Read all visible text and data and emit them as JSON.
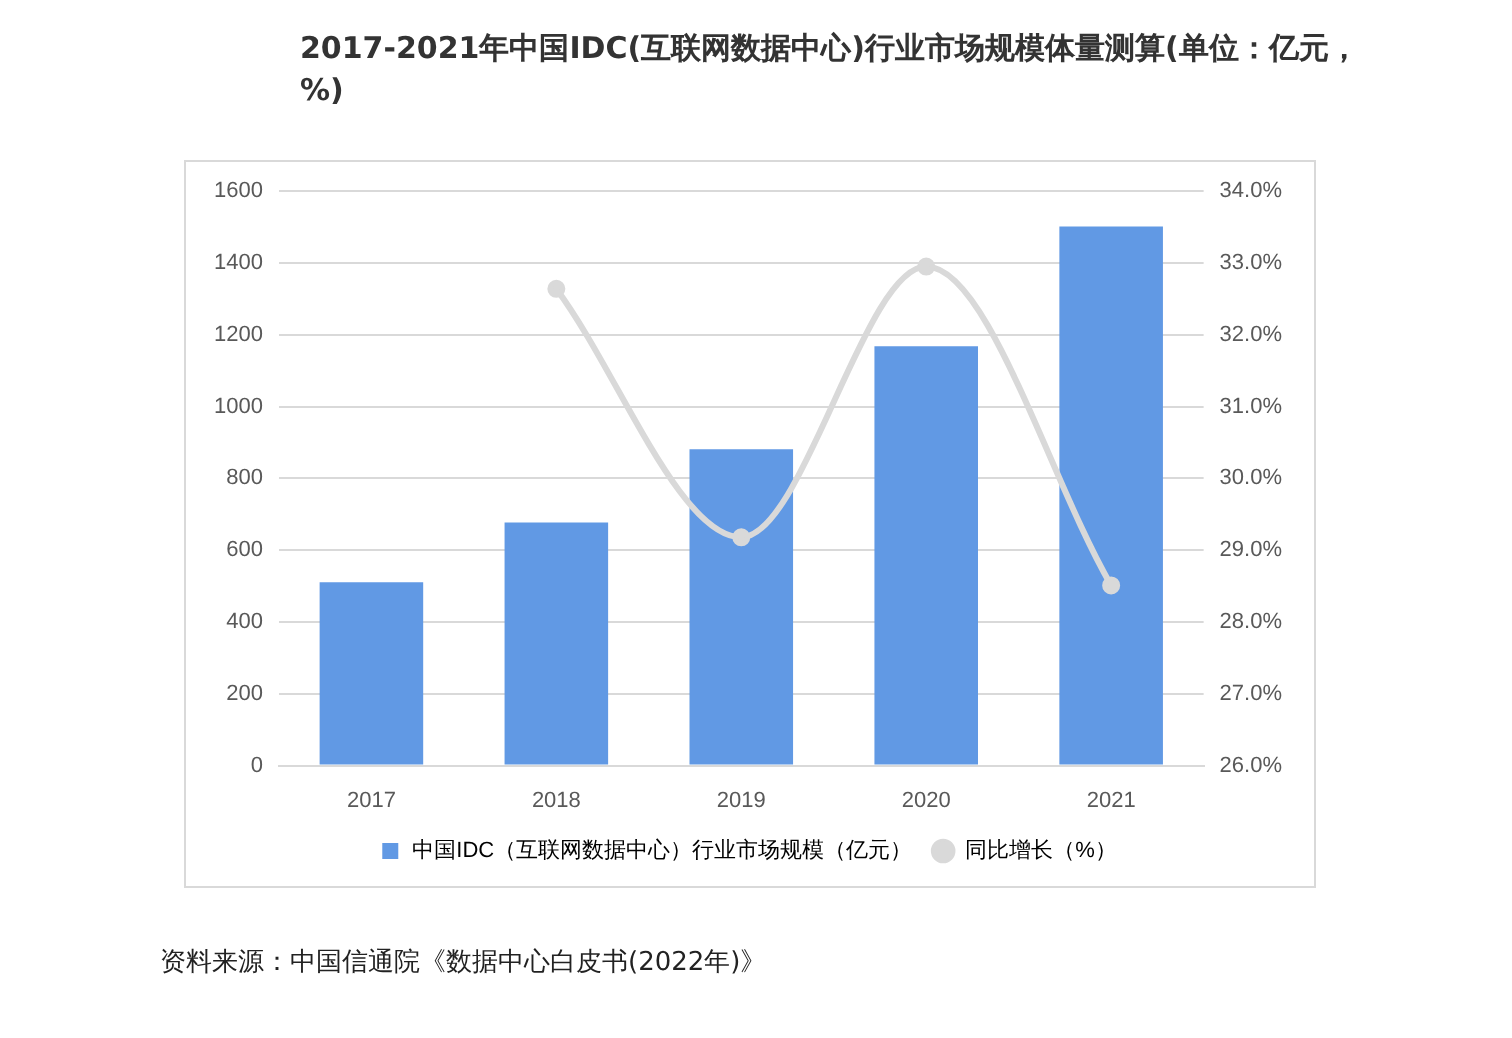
{
  "chart_data": {
    "type": "bar",
    "title": "2017-2021年中国IDC(互联网数据中心)行业市场规模体量测算(单位：亿元，%)",
    "categories": [
      "2017",
      "2018",
      "2019",
      "2020",
      "2021"
    ],
    "series": [
      {
        "name": "中国IDC（互联网数据中心）行业市场规模（亿元）",
        "color": "#6199e4",
        "values": [
          511,
          677,
          881,
          1168,
          1502
        ]
      },
      {
        "name": "同比增长（%）",
        "type": "line",
        "axis": "y2",
        "color": "#d9d9d9",
        "values": [
          null,
          32.64,
          29.18,
          32.95,
          28.51
        ]
      }
    ],
    "ylim": [
      0,
      1600
    ],
    "yticks": [
      0,
      200,
      400,
      600,
      800,
      1000,
      1200,
      1400,
      1600
    ],
    "y2lim": [
      26,
      34
    ],
    "y2ticks": [
      {
        "value": 26,
        "label": "26.0%"
      },
      {
        "value": 27,
        "label": "27.0%"
      },
      {
        "value": 28,
        "label": "28.0%"
      },
      {
        "value": 29,
        "label": "29.0%"
      },
      {
        "value": 30,
        "label": "30.0%"
      },
      {
        "value": 31,
        "label": "31.0%"
      },
      {
        "value": 32,
        "label": "32.0%"
      },
      {
        "value": 33,
        "label": "33.0%"
      },
      {
        "value": 34,
        "label": "34.0%"
      }
    ],
    "grid": "y",
    "legend": "bottom",
    "marker": "circle",
    "annotations": [
      "资料来源：中国信通院《数据中心白皮书(2022年)》"
    ]
  }
}
